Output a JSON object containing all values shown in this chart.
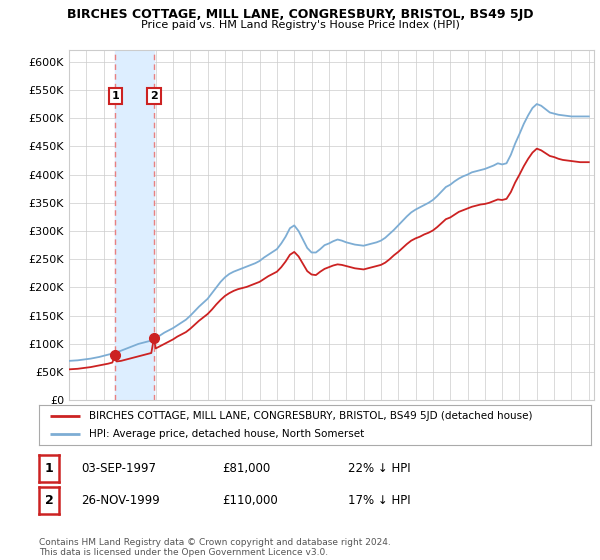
{
  "title": "BIRCHES COTTAGE, MILL LANE, CONGRESBURY, BRISTOL, BS49 5JD",
  "subtitle": "Price paid vs. HM Land Registry's House Price Index (HPI)",
  "ylabel_ticks": [
    "£0",
    "£50K",
    "£100K",
    "£150K",
    "£200K",
    "£250K",
    "£300K",
    "£350K",
    "£400K",
    "£450K",
    "£500K",
    "£550K",
    "£600K"
  ],
  "ytick_values": [
    0,
    50000,
    100000,
    150000,
    200000,
    250000,
    300000,
    350000,
    400000,
    450000,
    500000,
    550000,
    600000
  ],
  "ylim": [
    0,
    620000
  ],
  "xlim_start": 1995.0,
  "xlim_end": 2025.3,
  "purchases": [
    {
      "year": 1997.67,
      "price": 81000,
      "label": "1"
    },
    {
      "year": 1999.9,
      "price": 110000,
      "label": "2"
    }
  ],
  "hpi_line_color": "#7dadd4",
  "price_line_color": "#cc2222",
  "purchase_dot_color": "#cc2222",
  "vline_color": "#e88080",
  "vspan_color": "#ddeeff",
  "legend_house_label": "BIRCHES COTTAGE, MILL LANE, CONGRESBURY, BRISTOL, BS49 5JD (detached house)",
  "legend_hpi_label": "HPI: Average price, detached house, North Somerset",
  "table_rows": [
    {
      "num": "1",
      "date": "03-SEP-1997",
      "price": "£81,000",
      "hpi": "22% ↓ HPI"
    },
    {
      "num": "2",
      "date": "26-NOV-1999",
      "price": "£110,000",
      "hpi": "17% ↓ HPI"
    }
  ],
  "footnote": "Contains HM Land Registry data © Crown copyright and database right 2024.\nThis data is licensed under the Open Government Licence v3.0.",
  "background_color": "#ffffff",
  "grid_color": "#cccccc",
  "hpi_years": [
    1995.0,
    1995.25,
    1995.5,
    1995.75,
    1996.0,
    1996.25,
    1996.5,
    1996.75,
    1997.0,
    1997.25,
    1997.5,
    1997.75,
    1998.0,
    1998.25,
    1998.5,
    1998.75,
    1999.0,
    1999.25,
    1999.5,
    1999.75,
    2000.0,
    2000.25,
    2000.5,
    2000.75,
    2001.0,
    2001.25,
    2001.5,
    2001.75,
    2002.0,
    2002.25,
    2002.5,
    2002.75,
    2003.0,
    2003.25,
    2003.5,
    2003.75,
    2004.0,
    2004.25,
    2004.5,
    2004.75,
    2005.0,
    2005.25,
    2005.5,
    2005.75,
    2006.0,
    2006.25,
    2006.5,
    2006.75,
    2007.0,
    2007.25,
    2007.5,
    2007.75,
    2008.0,
    2008.25,
    2008.5,
    2008.75,
    2009.0,
    2009.25,
    2009.5,
    2009.75,
    2010.0,
    2010.25,
    2010.5,
    2010.75,
    2011.0,
    2011.25,
    2011.5,
    2011.75,
    2012.0,
    2012.25,
    2012.5,
    2012.75,
    2013.0,
    2013.25,
    2013.5,
    2013.75,
    2014.0,
    2014.25,
    2014.5,
    2014.75,
    2015.0,
    2015.25,
    2015.5,
    2015.75,
    2016.0,
    2016.25,
    2016.5,
    2016.75,
    2017.0,
    2017.25,
    2017.5,
    2017.75,
    2018.0,
    2018.25,
    2018.5,
    2018.75,
    2019.0,
    2019.25,
    2019.5,
    2019.75,
    2020.0,
    2020.25,
    2020.5,
    2020.75,
    2021.0,
    2021.25,
    2021.5,
    2021.75,
    2022.0,
    2022.25,
    2022.5,
    2022.75,
    2023.0,
    2023.25,
    2023.5,
    2023.75,
    2024.0,
    2024.25,
    2024.5,
    2024.75,
    2025.0
  ],
  "hpi_prices": [
    70000,
    70500,
    71000,
    72000,
    73000,
    74000,
    75500,
    77000,
    79000,
    81000,
    83000,
    85000,
    88000,
    91000,
    94000,
    97000,
    100000,
    102000,
    104000,
    106000,
    110000,
    115000,
    120000,
    124000,
    128000,
    133000,
    138000,
    143000,
    150000,
    158000,
    166000,
    173000,
    180000,
    190000,
    200000,
    210000,
    218000,
    224000,
    228000,
    231000,
    234000,
    237000,
    240000,
    243000,
    247000,
    253000,
    258000,
    263000,
    268000,
    278000,
    290000,
    305000,
    310000,
    300000,
    285000,
    270000,
    262000,
    262000,
    268000,
    275000,
    278000,
    282000,
    285000,
    283000,
    280000,
    278000,
    276000,
    275000,
    274000,
    276000,
    278000,
    280000,
    283000,
    288000,
    295000,
    302000,
    310000,
    318000,
    326000,
    333000,
    338000,
    342000,
    346000,
    350000,
    355000,
    362000,
    370000,
    378000,
    382000,
    388000,
    393000,
    397000,
    400000,
    404000,
    406000,
    408000,
    410000,
    413000,
    416000,
    420000,
    418000,
    420000,
    435000,
    455000,
    472000,
    490000,
    505000,
    518000,
    525000,
    522000,
    516000,
    510000,
    508000,
    506000,
    505000,
    504000,
    503000,
    503000,
    503000,
    503000,
    503000
  ],
  "pp_years": [
    1995.0,
    1995.25,
    1995.5,
    1995.75,
    1996.0,
    1996.25,
    1996.5,
    1996.75,
    1997.0,
    1997.25,
    1997.5,
    1997.67,
    1997.75,
    1998.0,
    1998.25,
    1998.5,
    1998.75,
    1999.0,
    1999.25,
    1999.5,
    1999.75,
    1999.9,
    2000.0,
    2000.25,
    2000.5,
    2000.75,
    2001.0,
    2001.25,
    2001.5,
    2001.75,
    2002.0,
    2002.25,
    2002.5,
    2002.75,
    2003.0,
    2003.25,
    2003.5,
    2003.75,
    2004.0,
    2004.25,
    2004.5,
    2004.75,
    2005.0,
    2005.25,
    2005.5,
    2005.75,
    2006.0,
    2006.25,
    2006.5,
    2006.75,
    2007.0,
    2007.25,
    2007.5,
    2007.75,
    2008.0,
    2008.25,
    2008.5,
    2008.75,
    2009.0,
    2009.25,
    2009.5,
    2009.75,
    2010.0,
    2010.25,
    2010.5,
    2010.75,
    2011.0,
    2011.25,
    2011.5,
    2011.75,
    2012.0,
    2012.25,
    2012.5,
    2012.75,
    2013.0,
    2013.25,
    2013.5,
    2013.75,
    2014.0,
    2014.25,
    2014.5,
    2014.75,
    2015.0,
    2015.25,
    2015.5,
    2015.75,
    2016.0,
    2016.25,
    2016.5,
    2016.75,
    2017.0,
    2017.25,
    2017.5,
    2017.75,
    2018.0,
    2018.25,
    2018.5,
    2018.75,
    2019.0,
    2019.25,
    2019.5,
    2019.75,
    2020.0,
    2020.25,
    2020.5,
    2020.75,
    2021.0,
    2021.25,
    2021.5,
    2021.75,
    2022.0,
    2022.25,
    2022.5,
    2022.75,
    2023.0,
    2023.25,
    2023.5,
    2023.75,
    2024.0,
    2024.25,
    2024.5,
    2024.75,
    2025.0
  ],
  "pp_prices": [
    55000,
    55500,
    56000,
    57000,
    58000,
    59000,
    60500,
    62000,
    63500,
    65000,
    67000,
    81000,
    69000,
    70000,
    72000,
    74000,
    76000,
    78000,
    80000,
    82000,
    84000,
    110000,
    92000,
    96000,
    100000,
    104000,
    108000,
    113000,
    117000,
    121000,
    127000,
    134000,
    141000,
    147000,
    153000,
    161000,
    170000,
    178000,
    185000,
    190000,
    194000,
    197000,
    199000,
    201000,
    204000,
    207000,
    210000,
    215000,
    220000,
    224000,
    228000,
    236000,
    246000,
    258000,
    263000,
    255000,
    242000,
    229000,
    223000,
    222000,
    228000,
    233000,
    236000,
    239000,
    241000,
    240000,
    238000,
    236000,
    234000,
    233000,
    232000,
    234000,
    236000,
    238000,
    240000,
    244000,
    250000,
    257000,
    263000,
    270000,
    277000,
    283000,
    287000,
    290000,
    294000,
    297000,
    301000,
    307000,
    314000,
    321000,
    324000,
    329000,
    334000,
    337000,
    340000,
    343000,
    345000,
    347000,
    348000,
    350000,
    353000,
    356000,
    355000,
    357000,
    369000,
    386000,
    400000,
    415000,
    428000,
    439000,
    446000,
    443000,
    438000,
    433000,
    431000,
    428000,
    426000,
    425000,
    424000,
    423000,
    422000,
    422000,
    422000
  ]
}
